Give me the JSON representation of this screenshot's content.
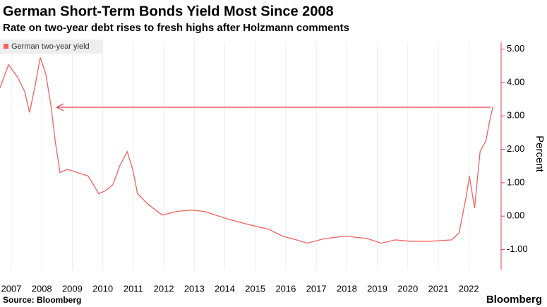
{
  "chart_data": {
    "type": "line",
    "title": "German Short-Term Bonds Yield Most Since 2008",
    "subtitle": "Rate on two-year debt rises to fresh highs after Holzmann comments",
    "y_label": "Percent",
    "source": "Source: Bloomberg",
    "brand": "Bloomberg",
    "grid": true,
    "x": [
      2006.63,
      2006.91,
      2007.21,
      2007.44,
      2007.6,
      2007.79,
      2007.95,
      2008.13,
      2008.3,
      2008.44,
      2008.6,
      2008.83,
      2009.18,
      2009.52,
      2009.87,
      2010.1,
      2010.33,
      2010.56,
      2010.8,
      2010.98,
      2011.14,
      2011.49,
      2011.95,
      2012.42,
      2012.88,
      2013.34,
      2014.04,
      2014.73,
      2015.43,
      2015.89,
      2016.35,
      2016.7,
      2017.28,
      2017.97,
      2018.67,
      2019.13,
      2019.59,
      2020.06,
      2020.75,
      2021.44,
      2021.68,
      2021.91,
      2022.02,
      2022.19,
      2022.37,
      2022.56,
      2022.67,
      2022.79
    ],
    "series": [
      {
        "name": "German two-year yield",
        "color": "#f0625f",
        "values": [
          3.84,
          4.53,
          4.15,
          3.73,
          3.1,
          3.94,
          4.75,
          4.26,
          3.31,
          2.25,
          1.3,
          1.4,
          1.3,
          1.2,
          0.67,
          0.77,
          0.94,
          1.51,
          1.93,
          1.4,
          0.67,
          0.35,
          0.03,
          0.14,
          0.18,
          0.14,
          -0.07,
          -0.24,
          -0.39,
          -0.6,
          -0.71,
          -0.81,
          -0.67,
          -0.6,
          -0.67,
          -0.81,
          -0.71,
          -0.75,
          -0.75,
          -0.71,
          -0.5,
          0.56,
          1.19,
          0.24,
          1.93,
          2.25,
          2.78,
          3.27
        ]
      }
    ],
    "xlim": [
      2006.63,
      2023.06
    ],
    "xticks": [
      2007,
      2008,
      2009,
      2010,
      2011,
      2012,
      2013,
      2014,
      2015,
      2016,
      2017,
      2018,
      2019,
      2020,
      2021,
      2022
    ],
    "ylim": [
      -1.6,
      5.2
    ],
    "yticks": [
      {
        "value": -1,
        "label": "-1.00"
      },
      {
        "value": 0,
        "label": "0.00"
      },
      {
        "value": 1,
        "label": "1.00"
      },
      {
        "value": 2,
        "label": "2.00"
      },
      {
        "value": 3,
        "label": "3.00"
      },
      {
        "value": 4,
        "label": "4.00"
      },
      {
        "value": 5,
        "label": "5.00"
      }
    ]
  }
}
